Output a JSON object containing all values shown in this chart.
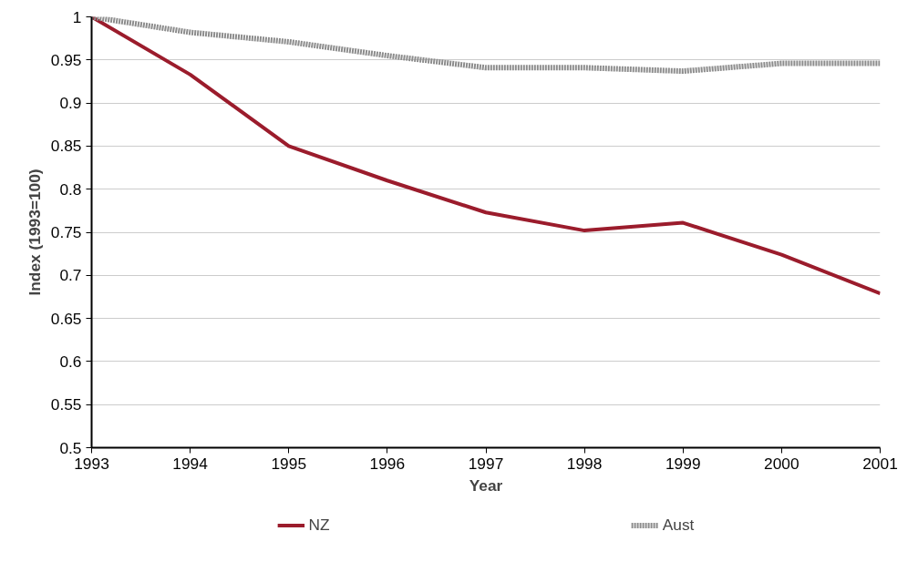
{
  "chart_data": {
    "type": "line",
    "xlabel": "Year",
    "ylabel": "Index (1993=100)",
    "x": [
      1993,
      1994,
      1995,
      1996,
      1997,
      1998,
      1999,
      2000,
      2001
    ],
    "series": [
      {
        "name": "NZ",
        "color": "#9b1c2c",
        "line_style": "solid",
        "values": [
          1.0,
          0.933,
          0.85,
          0.81,
          0.773,
          0.752,
          0.761,
          0.724,
          0.679
        ]
      },
      {
        "name": "Aust",
        "color": "#8c8c8c",
        "line_style": "dotted",
        "values": [
          1.0,
          0.982,
          0.971,
          0.955,
          0.941,
          0.941,
          0.937,
          0.946,
          0.946
        ]
      }
    ],
    "xlim": [
      1993,
      2001
    ],
    "xticks": [
      1993,
      1994,
      1995,
      1996,
      1997,
      1998,
      1999,
      2000,
      2001
    ],
    "ylim": [
      0.5,
      1
    ],
    "yticks": [
      {
        "value": 0.5,
        "label": "0.5"
      },
      0.55,
      {
        "value": 0.6,
        "label": "0.6"
      },
      0.65,
      {
        "value": 0.7,
        "label": "0.7"
      },
      0.75,
      {
        "value": 0.8,
        "label": "0.8"
      },
      0.85,
      {
        "value": 0.9,
        "label": "0.9"
      },
      0.95,
      {
        "value": 1,
        "label": "1"
      }
    ],
    "grid": "y",
    "legend": "bottom",
    "marker": "none"
  }
}
